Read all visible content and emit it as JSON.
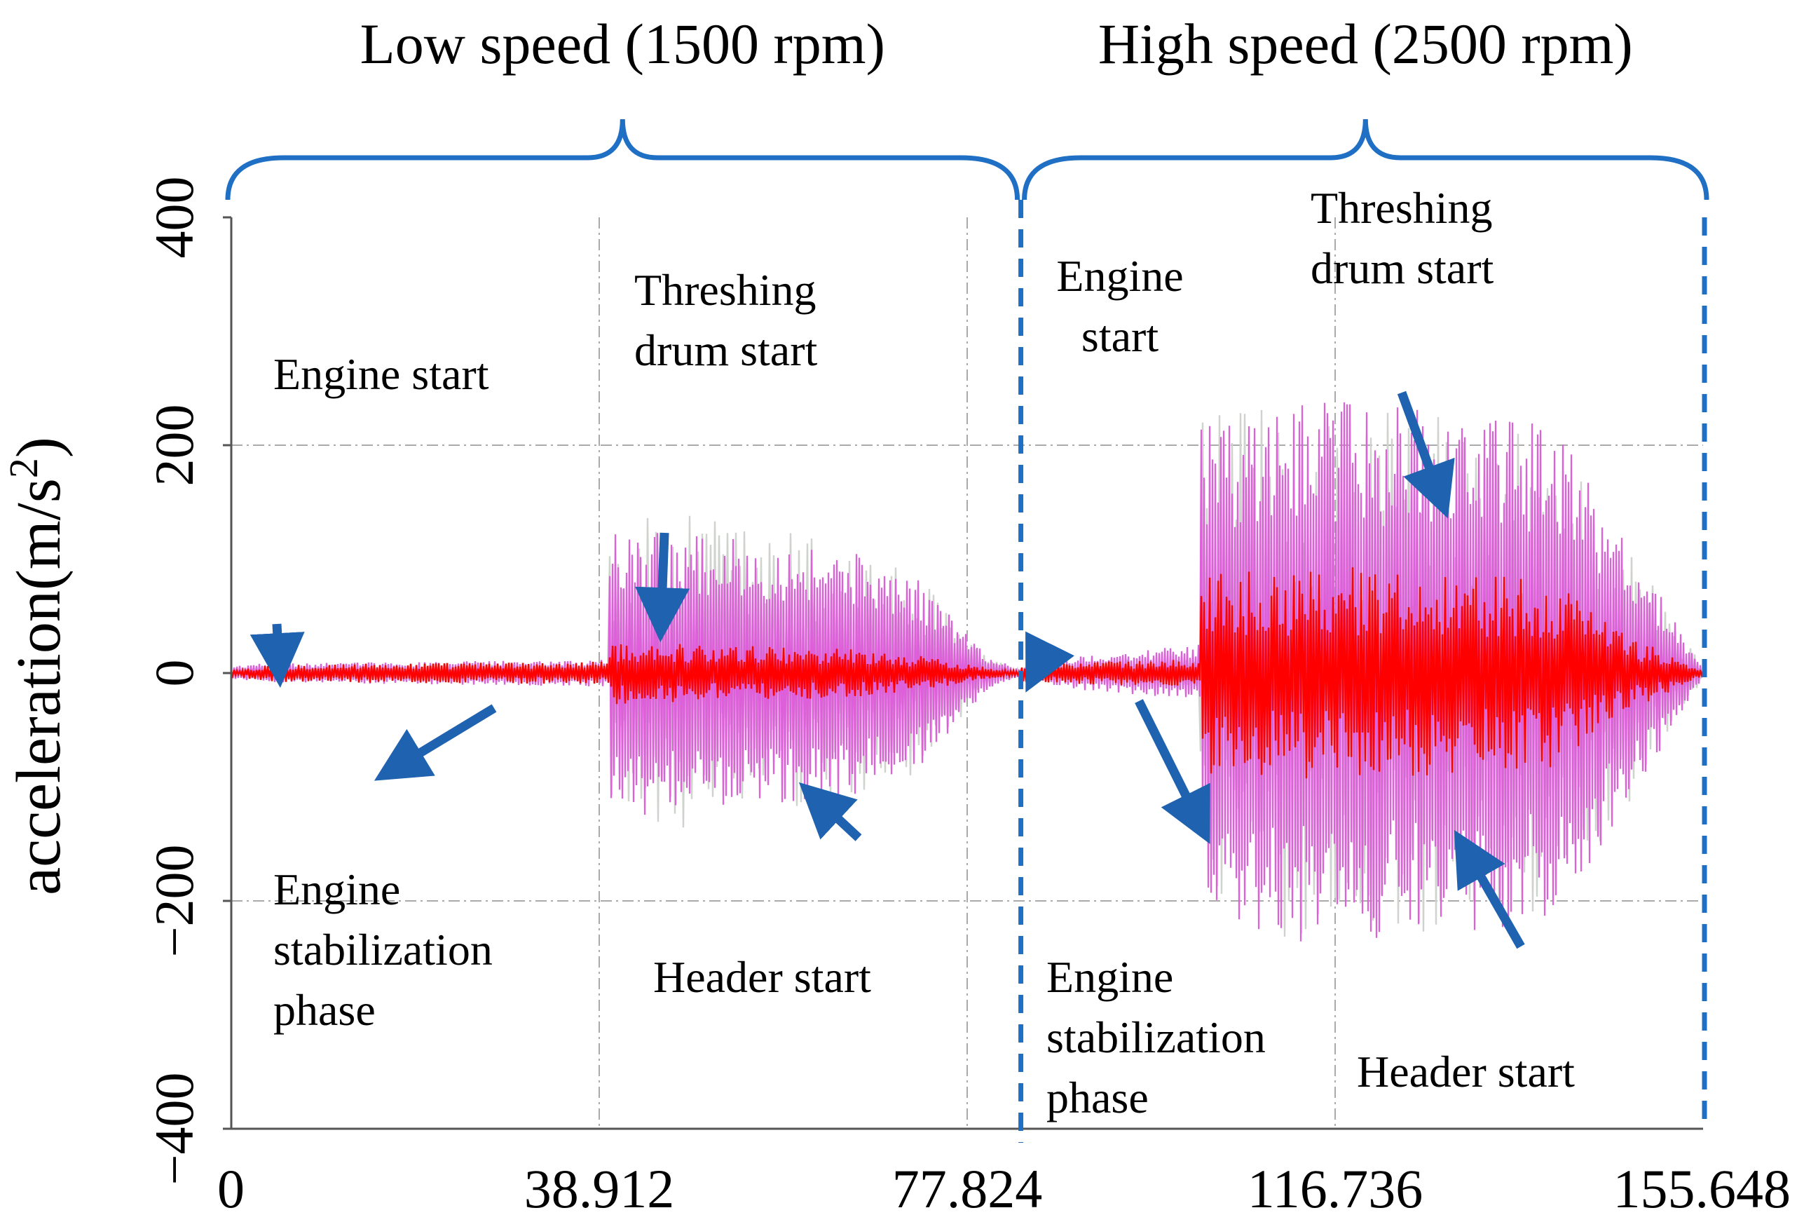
{
  "chart_data": {
    "type": "line",
    "title": "",
    "xlabel": "",
    "ylabel": "acceleration(m/s",
    "ylabel_exponent": "2",
    "ylabel_close": ")",
    "xlim": [
      0,
      155.648
    ],
    "ylim": [
      -400,
      400
    ],
    "x_ticks": [
      0,
      38.912,
      77.824,
      116.736,
      155.648
    ],
    "x_tick_labels": [
      "0",
      "38.912",
      "77.824",
      "116.736",
      "155.648"
    ],
    "y_ticks": [
      -400,
      -200,
      0,
      200,
      400
    ],
    "y_tick_labels": [
      "−400",
      "−200",
      "0",
      "200",
      "400"
    ],
    "grid": true,
    "sections": [
      {
        "label": "Low speed (1500 rpm)",
        "x_range": [
          0,
          83.5
        ]
      },
      {
        "label": "High speed (2500 rpm)",
        "x_range": [
          83.5,
          155.648
        ]
      }
    ],
    "section_divider_x": 83.5,
    "section_end_x": 155.648,
    "envelope_segments": {
      "gray": [
        {
          "x": [
            0,
            2,
            40,
            40,
            50,
            65,
            73,
            80,
            83.5
          ],
          "y": [
            3,
            6,
            8,
            135,
            140,
            120,
            85,
            15,
            3
          ]
        },
        {
          "x": [
            83.5,
            90,
            102.5,
            102.5,
            115,
            140,
            146,
            155.648
          ],
          "y": [
            4,
            10,
            15,
            225,
            240,
            215,
            140,
            5
          ]
        }
      ],
      "magenta": [
        {
          "x": [
            0,
            2,
            40,
            40,
            50,
            65,
            73,
            80,
            83.5
          ],
          "y": [
            5,
            8,
            12,
            130,
            120,
            110,
            80,
            15,
            3
          ]
        },
        {
          "x": [
            83.5,
            90,
            102.5,
            102.5,
            115,
            140,
            146,
            155.648
          ],
          "y": [
            5,
            15,
            25,
            215,
            240,
            220,
            140,
            5
          ]
        }
      ],
      "red": [
        {
          "x": [
            0,
            5,
            40,
            40,
            50,
            65,
            73,
            80,
            83.5
          ],
          "y": [
            3,
            8,
            10,
            28,
            25,
            22,
            15,
            5,
            2
          ]
        },
        {
          "x": [
            83.5,
            90,
            102.5,
            102.5,
            115,
            140,
            146,
            155.648
          ],
          "y": [
            8,
            10,
            12,
            90,
            95,
            85,
            40,
            3
          ]
        }
      ]
    },
    "annotations": [
      {
        "lines": [
          "Engine start"
        ],
        "arrow_target": [
          5,
          15
        ]
      },
      {
        "lines": [
          "Engine",
          "stabilization",
          "phase"
        ],
        "arrow_target": [
          18,
          -80
        ]
      },
      {
        "lines": [
          "Threshing",
          "drum start"
        ],
        "arrow_target": [
          45.5,
          55
        ]
      },
      {
        "lines": [
          "Header start"
        ],
        "arrow_target": [
          62.5,
          -115
        ]
      },
      {
        "lines": [
          "Engine",
          "start"
        ],
        "arrow_target": [
          85.5,
          8
        ]
      },
      {
        "lines": [
          "Engine",
          "stabilization",
          "phase"
        ],
        "arrow_target": [
          102,
          -125
        ]
      },
      {
        "lines": [
          "Threshing",
          "drum start"
        ],
        "arrow_target": [
          127.5,
          162
        ]
      },
      {
        "lines": [
          "Header start"
        ],
        "arrow_target": [
          131,
          -162
        ]
      }
    ],
    "colors": {
      "gray_trace": "#cfd3cd",
      "magenta_trace": "#dd5fd9",
      "red_trace": "#ff0000",
      "cyan_trace": "#22e6e6",
      "bracket": "#1f6fc5",
      "divider": "#1f6fc5",
      "arrow": "#1e62b0",
      "grid": "#aaaaaa"
    }
  }
}
